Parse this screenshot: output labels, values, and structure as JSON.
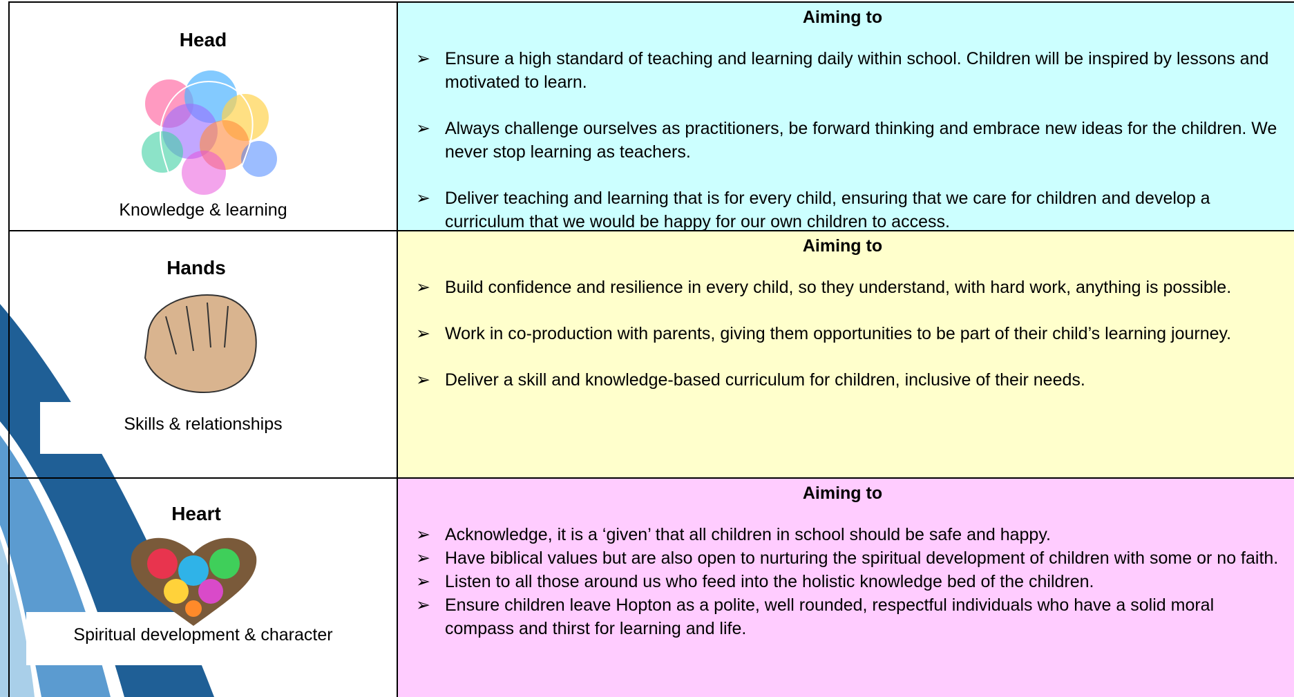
{
  "rows": [
    {
      "title": "Head",
      "caption": "Knowledge & learning",
      "heading": "Aiming to",
      "aims": [
        "Ensure a high standard of teaching and learning daily within school. Children will be inspired by lessons and motivated to learn.",
        "Always challenge ourselves as practitioners, be forward thinking and embrace new ideas for the children. We never stop learning as teachers.",
        "Deliver teaching and learning that is for every child, ensuring that we care for children and develop a curriculum that we would be happy for our own children to access."
      ]
    },
    {
      "title": "Hands",
      "caption": "Skills & relationships",
      "heading": "Aiming to",
      "aims": [
        "Build confidence and resilience in every child, so they understand, with hard work, anything is possible.",
        "Work in co-production with parents, giving them opportunities to be part of their child’s learning journey.",
        "Deliver a skill and knowledge-based curriculum for children, inclusive of their needs."
      ]
    },
    {
      "title": "Heart",
      "caption": "Spiritual development & character",
      "heading": "Aiming to",
      "aims": [
        "Acknowledge, it is a ‘given’ that all children in school should be safe and happy.",
        "Have biblical values but are also open to nurturing the spiritual development of children with some or no faith.",
        "Listen to all those around us who feed into the holistic knowledge bed of the children.",
        "Ensure children leave Hopton as a polite, well rounded, respectful individuals who have a solid moral compass and thirst for learning and life."
      ]
    }
  ]
}
